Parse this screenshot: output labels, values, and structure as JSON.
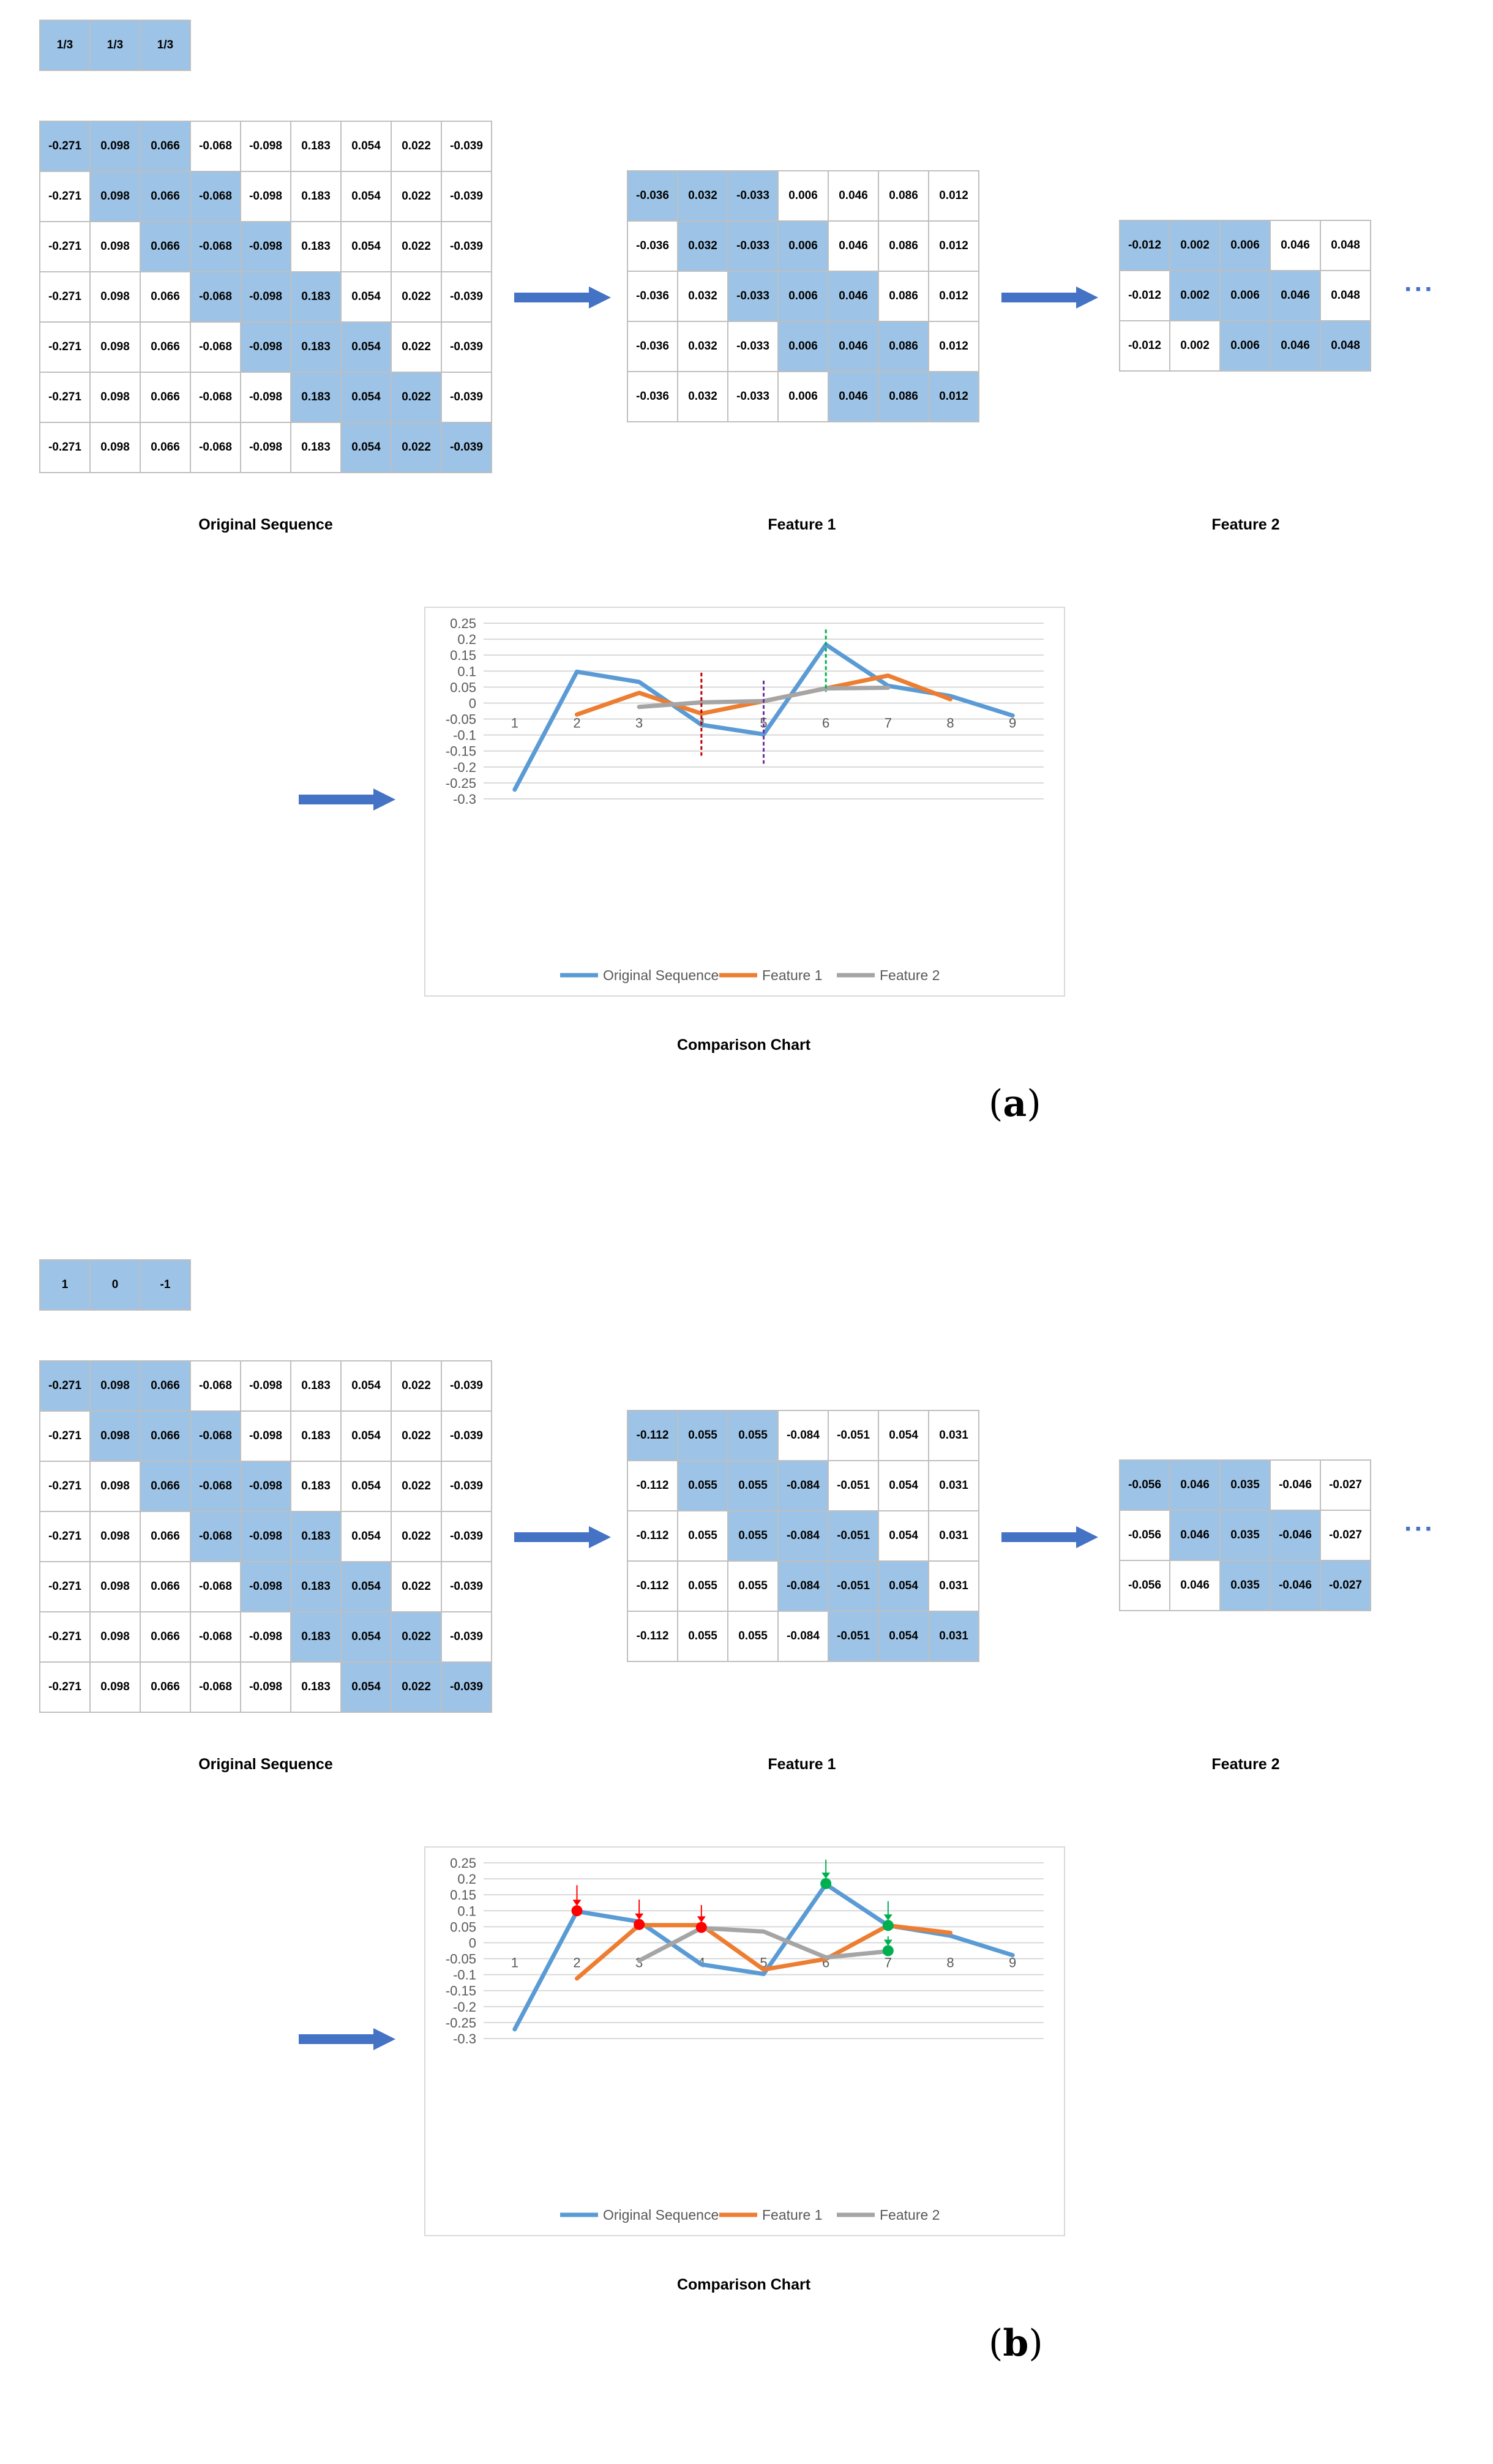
{
  "panels": [
    {
      "label": "a",
      "kernel": [
        "1/3",
        "1/3",
        "1/3"
      ],
      "original": {
        "values": [
          "-0.271",
          "0.098",
          "0.066",
          "-0.068",
          "-0.098",
          "0.183",
          "0.054",
          "0.022",
          "-0.039"
        ],
        "caption": "Original Sequence"
      },
      "feature1": {
        "values": [
          "-0.036",
          "0.032",
          "-0.033",
          "0.006",
          "0.046",
          "0.086",
          "0.012"
        ],
        "caption": "Feature 1"
      },
      "feature2": {
        "values": [
          "-0.012",
          "0.002",
          "0.006",
          "0.046",
          "0.048"
        ],
        "caption": "Feature 2"
      },
      "ellipsis": "···",
      "chart_caption": "Comparison Chart"
    },
    {
      "label": "b",
      "kernel": [
        "1",
        "0",
        "-1"
      ],
      "original": {
        "values": [
          "-0.271",
          "0.098",
          "0.066",
          "-0.068",
          "-0.098",
          "0.183",
          "0.054",
          "0.022",
          "-0.039"
        ],
        "caption": "Original Sequence"
      },
      "feature1": {
        "values": [
          "-0.112",
          "0.055",
          "0.055",
          "-0.084",
          "-0.051",
          "0.054",
          "0.031"
        ],
        "caption": "Feature 1"
      },
      "feature2": {
        "values": [
          "-0.056",
          "0.046",
          "0.035",
          "-0.046",
          "-0.027"
        ],
        "caption": "Feature 2"
      },
      "ellipsis": "···",
      "chart_caption": "Comparison Chart"
    }
  ],
  "colors": {
    "highlight": "#9dc3e6",
    "arrow": "#4472c4",
    "original": "#5b9bd5",
    "feature1": "#ed7d31",
    "feature2": "#a5a5a5",
    "red_marker": "#ff0000",
    "green_marker": "#00b050",
    "purple_marker": "#7030a0",
    "darkred_marker": "#c00000"
  },
  "chart_data": [
    {
      "type": "line",
      "x": [
        1,
        2,
        3,
        4,
        5,
        6,
        7,
        8,
        9
      ],
      "xlabels": [
        "1",
        "2",
        "3",
        "4",
        "5",
        "6",
        "7",
        "8",
        "9"
      ],
      "ylim": [
        -0.3,
        0.25
      ],
      "yticks": [
        "0.25",
        "0.2",
        "0.15",
        "0.1",
        "0.05",
        "0",
        "-0.05",
        "-0.1",
        "-0.15",
        "-0.2",
        "-0.25",
        "-0.3"
      ],
      "grid": true,
      "legend_position": "bottom",
      "series": [
        {
          "name": "Original Sequence",
          "x": [
            1,
            2,
            3,
            4,
            5,
            6,
            7,
            8,
            9
          ],
          "values": [
            -0.271,
            0.098,
            0.066,
            -0.068,
            -0.098,
            0.183,
            0.054,
            0.022,
            -0.039
          ]
        },
        {
          "name": "Feature 1",
          "x": [
            2,
            3,
            4,
            5,
            6,
            7,
            8
          ],
          "values": [
            -0.036,
            0.032,
            -0.033,
            0.006,
            0.046,
            0.086,
            0.012
          ]
        },
        {
          "name": "Feature 2",
          "x": [
            3,
            4,
            5,
            6,
            7
          ],
          "values": [
            -0.012,
            0.002,
            0.006,
            0.046,
            0.048
          ]
        }
      ],
      "annotations": [
        {
          "kind": "vline",
          "x": 4,
          "from": -0.165,
          "to": 0.095,
          "color": "darkred_marker"
        },
        {
          "kind": "vline",
          "x": 5,
          "from": -0.19,
          "to": 0.07,
          "color": "purple_marker"
        },
        {
          "kind": "vline",
          "x": 6,
          "from": 0.035,
          "to": 0.23,
          "color": "green_marker"
        }
      ]
    },
    {
      "type": "line",
      "x": [
        1,
        2,
        3,
        4,
        5,
        6,
        7,
        8,
        9
      ],
      "xlabels": [
        "1",
        "2",
        "3",
        "4",
        "5",
        "6",
        "7",
        "8",
        "9"
      ],
      "ylim": [
        -0.3,
        0.25
      ],
      "yticks": [
        "0.25",
        "0.2",
        "0.15",
        "0.1",
        "0.05",
        "0",
        "-0.05",
        "-0.1",
        "-0.15",
        "-0.2",
        "-0.25",
        "-0.3"
      ],
      "grid": true,
      "legend_position": "bottom",
      "series": [
        {
          "name": "Original Sequence",
          "x": [
            1,
            2,
            3,
            4,
            5,
            6,
            7,
            8,
            9
          ],
          "values": [
            -0.271,
            0.098,
            0.066,
            -0.068,
            -0.098,
            0.183,
            0.054,
            0.022,
            -0.039
          ]
        },
        {
          "name": "Feature 1",
          "x": [
            2,
            3,
            4,
            5,
            6,
            7,
            8
          ],
          "values": [
            -0.112,
            0.055,
            0.055,
            -0.084,
            -0.051,
            0.054,
            0.031
          ]
        },
        {
          "name": "Feature 2",
          "x": [
            3,
            4,
            5,
            6,
            7
          ],
          "values": [
            -0.056,
            0.046,
            0.035,
            -0.046,
            -0.027
          ]
        }
      ],
      "annotations": [
        {
          "kind": "marker",
          "x": 2,
          "y": 0.1,
          "color": "red_marker",
          "arrow_from": 0.18
        },
        {
          "kind": "marker",
          "x": 3,
          "y": 0.057,
          "color": "red_marker",
          "arrow_from": 0.135
        },
        {
          "kind": "marker",
          "x": 4,
          "y": 0.048,
          "color": "red_marker",
          "arrow_from": 0.118
        },
        {
          "kind": "marker",
          "x": 6,
          "y": 0.185,
          "color": "green_marker",
          "arrow_from": 0.26
        },
        {
          "kind": "marker",
          "x": 7,
          "y": 0.054,
          "color": "green_marker",
          "arrow_from": 0.13
        },
        {
          "kind": "marker",
          "x": 7,
          "y": -0.025,
          "color": "green_marker",
          "arrow_from": 0.02
        }
      ]
    }
  ]
}
